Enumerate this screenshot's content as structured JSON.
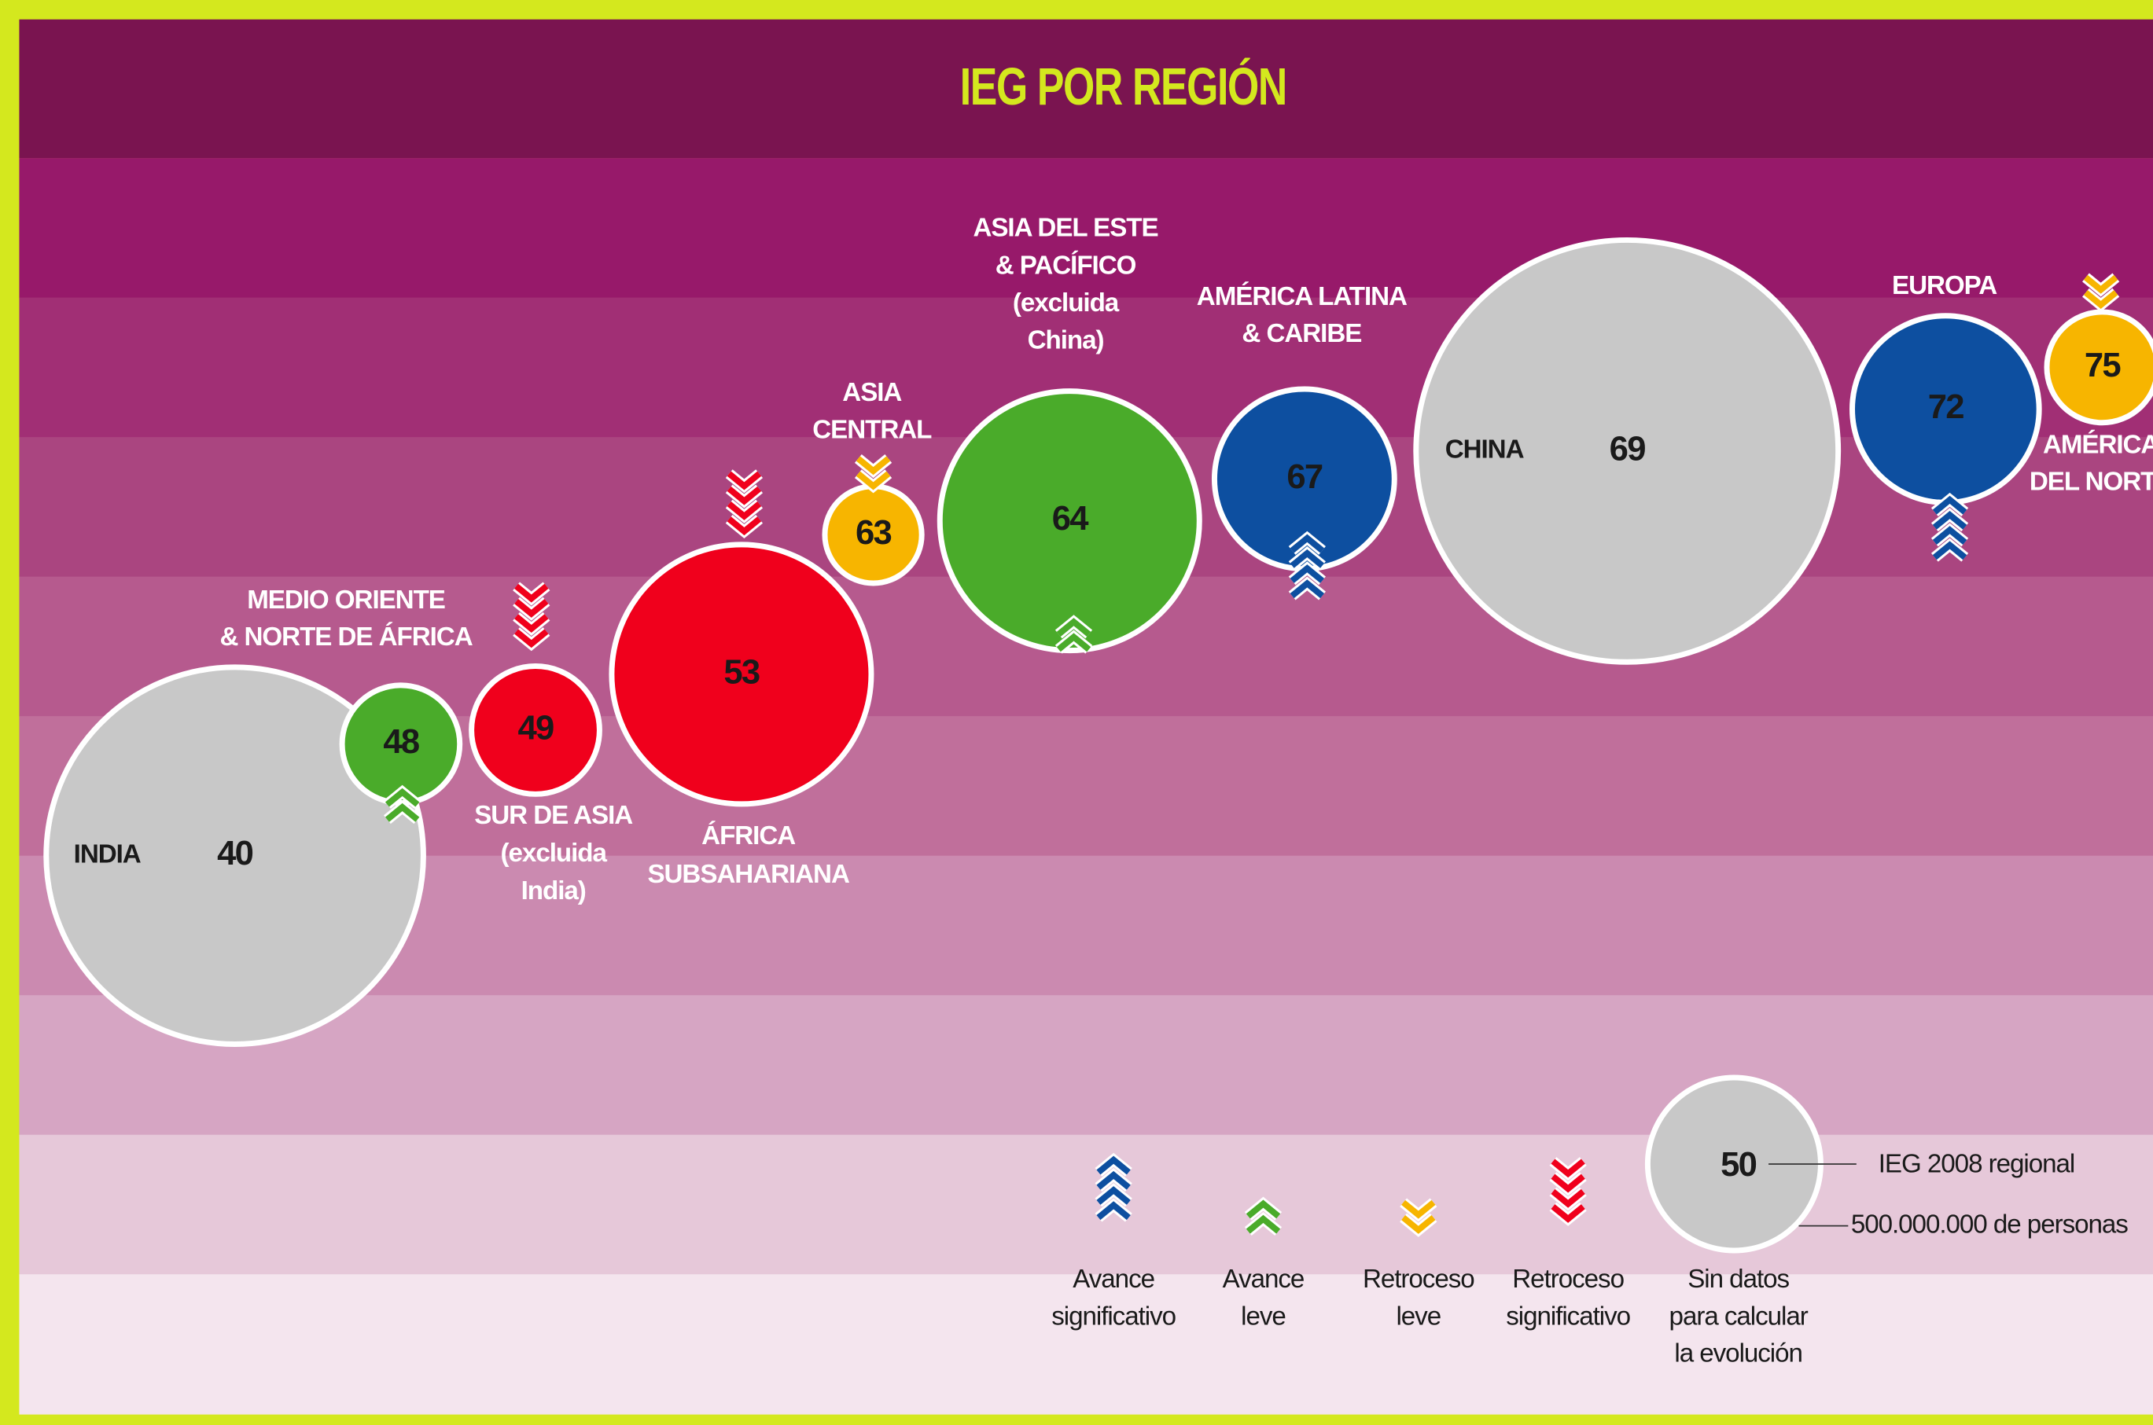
{
  "chart_data": {
    "type": "bubble",
    "title": "IEG POR REGIÓN",
    "ylim": [
      0,
      90
    ],
    "points": [
      {
        "name": [
          "INDIA"
        ],
        "value": 40,
        "size": 1090000000,
        "color": "#c8c8c8",
        "trend": 4
      },
      {
        "name": [
          "MEDIO ORIENTE",
          "& NORTE DE ÁFRICA"
        ],
        "value": 48,
        "size": 340000000,
        "color": "#4aab2a",
        "trend": 1
      },
      {
        "name": [
          "SUR DE ASIA",
          "(excluida",
          "India)"
        ],
        "value": 49,
        "size": 370000000,
        "color": "#f0001c",
        "trend": 3
      },
      {
        "name": [
          "ÁFRICA",
          "SUBSAHARIANA"
        ],
        "value": 53,
        "size": 750000000,
        "color": "#f0001c",
        "trend": 3
      },
      {
        "name": [
          "ASIA",
          "CENTRAL"
        ],
        "value": 63,
        "size": 280000000,
        "color": "#f7b500",
        "trend": 2
      },
      {
        "name": [
          "ASIA DEL ESTE",
          "& PACÍFICO",
          "(excluida",
          "China)"
        ],
        "value": 64,
        "size": 750000000,
        "color": "#4aab2a",
        "trend": 1
      },
      {
        "name": [
          "AMÉRICA LATINA",
          "& CARIBE"
        ],
        "value": 67,
        "size": 520000000,
        "color": "#0d4fa0",
        "trend": 0
      },
      {
        "name": [
          "CHINA"
        ],
        "value": 69,
        "size": 1220000000,
        "color": "#c8c8c8",
        "trend": 4
      },
      {
        "name": [
          "EUROPA"
        ],
        "value": 72,
        "size": 540000000,
        "color": "#0d4fa0",
        "trend": 0
      },
      {
        "name": [
          "AMÉRICA",
          "DEL NORTE"
        ],
        "value": 75,
        "size": 320000000,
        "color": "#f7b500",
        "trend": 2
      }
    ],
    "legend": [
      {
        "label": [
          "Avance",
          "significativo"
        ],
        "color": "#0d4fa0"
      },
      {
        "label": [
          "Avance",
          "leve"
        ],
        "color": "#4aab2a"
      },
      {
        "label": [
          "Retroceso",
          "leve"
        ],
        "color": "#f7b500"
      },
      {
        "label": [
          "Retroceso",
          "significativo"
        ],
        "color": "#f0001c"
      },
      {
        "label": [
          "Sin datos",
          "para calcular",
          "la evolución"
        ],
        "color": "#c8c8c8"
      }
    ],
    "reference": {
      "value": 50,
      "size": 500000000,
      "value_label": "IEG 2008 regional",
      "size_label": "500.000.000 de personas"
    }
  }
}
